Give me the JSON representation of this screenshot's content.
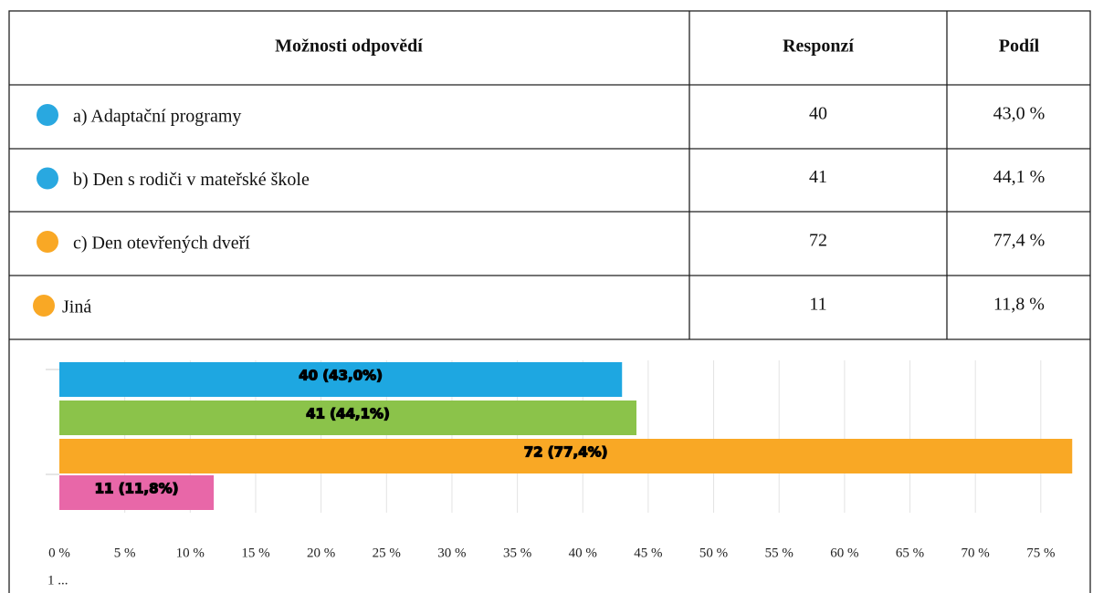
{
  "table": {
    "header": [
      "Možnosti odpovědí",
      "Responzí",
      "Podíl"
    ],
    "rows": [
      {
        "color": "#29a8e0",
        "option": "a) Adaptační programy",
        "responses": "40",
        "share": "43,0 %"
      },
      {
        "color": "#29a8e0",
        "option": "b) Den s rodiči v mateřské škole",
        "responses": "41",
        "share": "44,1 %"
      },
      {
        "color": "#f9a825",
        "option": "c) Den otevřených dveří",
        "responses": "72",
        "share": "77,4 %"
      },
      {
        "color": "#f9a825",
        "option": "Jiná",
        "responses": "11",
        "share": "11,8 %"
      }
    ]
  },
  "chart": {
    "type": "bar",
    "values": [
      43.0,
      44.1,
      77.4,
      11.8
    ],
    "value_labels": [
      "40 (43,0%)",
      "41 (44,1%)",
      "72 (77,4%)",
      "11 (11,8%)"
    ],
    "colors": [
      "#1ea7e1",
      "#8bc34a",
      "#f9a825",
      "#e867a8"
    ],
    "xlim": [
      0,
      78.5
    ],
    "xticks": [
      {
        "value": 0,
        "label": "0 %"
      },
      {
        "value": 5,
        "label": "5 %"
      },
      {
        "value": 10,
        "label": "10 %"
      },
      {
        "value": 15,
        "label": "15 %"
      },
      {
        "value": 20,
        "label": "20 %"
      },
      {
        "value": 25,
        "label": "25 %"
      },
      {
        "value": 30,
        "label": "30 %"
      },
      {
        "value": 35,
        "label": "35 %"
      },
      {
        "value": 40,
        "label": "40 %"
      },
      {
        "value": 45,
        "label": "45 %"
      },
      {
        "value": 50,
        "label": "50 %"
      },
      {
        "value": 55,
        "label": "55 %"
      },
      {
        "value": 60,
        "label": "60 %"
      },
      {
        "value": 65,
        "label": "65 %"
      },
      {
        "value": 70,
        "label": "70 %"
      },
      {
        "value": 75,
        "label": "75 %"
      }
    ],
    "grid": true,
    "footnote": "1 ..."
  }
}
